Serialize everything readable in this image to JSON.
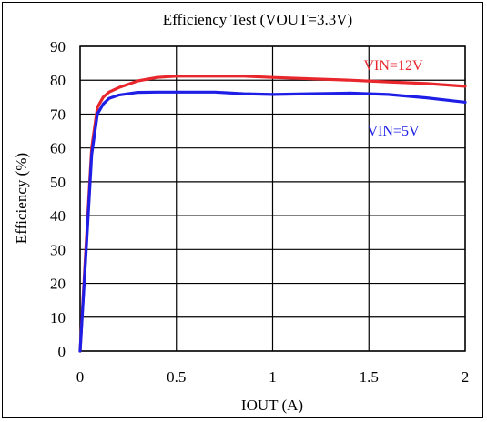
{
  "chart_data": {
    "type": "line",
    "title": "Efficiency Test (VOUT=3.3V)",
    "xlabel": "IOUT (A)",
    "ylabel": "Efficiency (%)",
    "xlim": [
      0,
      2
    ],
    "ylim": [
      0,
      90
    ],
    "x_ticks": [
      "0",
      "0.5",
      "1",
      "1.5",
      "2"
    ],
    "x_tick_values": [
      0,
      0.5,
      1,
      1.5,
      2
    ],
    "y_ticks": [
      "0",
      "10",
      "20",
      "30",
      "40",
      "50",
      "60",
      "70",
      "80",
      "90"
    ],
    "y_tick_values": [
      0,
      10,
      20,
      30,
      40,
      50,
      60,
      70,
      80,
      90
    ],
    "grid": true,
    "series": [
      {
        "name": "VIN=12V",
        "color": "#e8262c",
        "x": [
          0,
          0.03,
          0.06,
          0.09,
          0.12,
          0.15,
          0.2,
          0.3,
          0.4,
          0.5,
          0.7,
          0.85,
          1.0,
          1.2,
          1.4,
          1.6,
          1.8,
          2.0
        ],
        "y": [
          0,
          30,
          60,
          72,
          75,
          76.5,
          77.8,
          79.8,
          80.8,
          81.2,
          81.2,
          81.2,
          80.8,
          80.4,
          80,
          79.5,
          79,
          78.2
        ]
      },
      {
        "name": "VIN=5V",
        "color": "#1e1ee6",
        "x": [
          0,
          0.03,
          0.06,
          0.09,
          0.12,
          0.15,
          0.2,
          0.3,
          0.4,
          0.5,
          0.7,
          0.85,
          1.0,
          1.2,
          1.4,
          1.6,
          1.8,
          2.0
        ],
        "y": [
          0,
          28,
          58,
          70,
          73,
          74.6,
          75.6,
          76.4,
          76.5,
          76.5,
          76.5,
          76,
          75.8,
          76,
          76.2,
          75.8,
          74.8,
          73.5
        ]
      }
    ]
  }
}
